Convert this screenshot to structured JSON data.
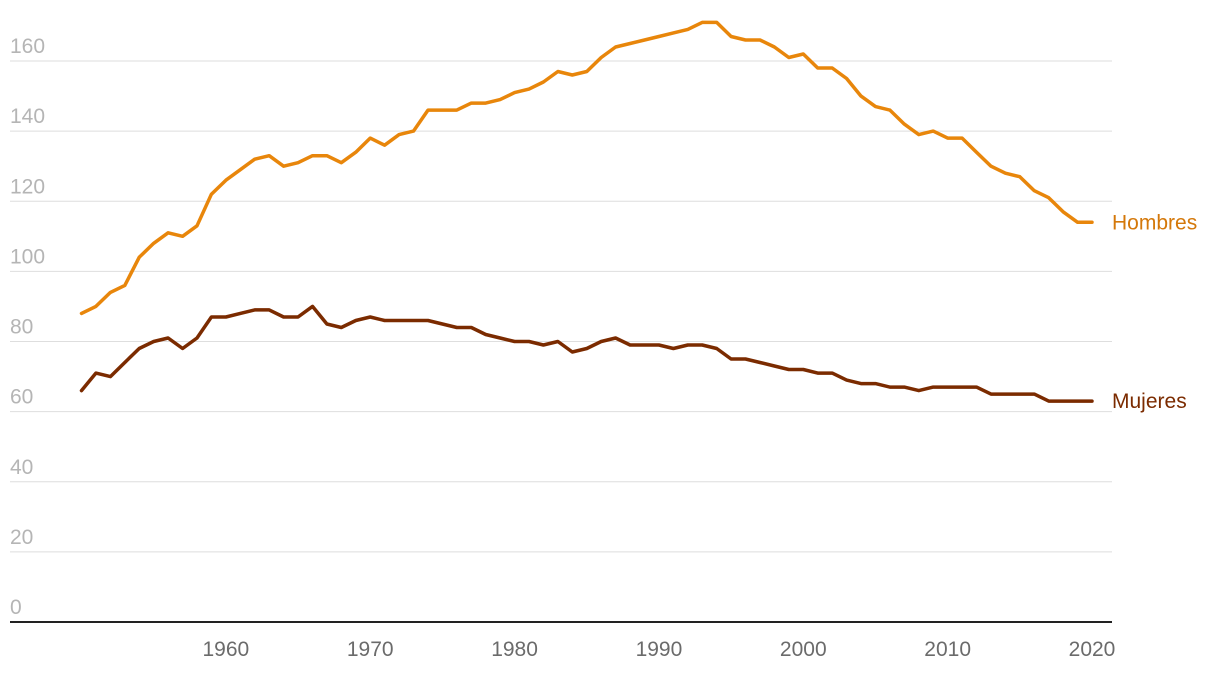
{
  "chart_data": {
    "type": "line",
    "title": "",
    "xlabel": "",
    "ylabel": "",
    "xlim": [
      1950,
      2020
    ],
    "ylim": [
      0,
      160
    ],
    "y_ticks": [
      0,
      20,
      40,
      60,
      80,
      100,
      120,
      140,
      160
    ],
    "x_ticks": [
      1960,
      1970,
      1980,
      1990,
      2000,
      2010,
      2020
    ],
    "grid": "horizontal",
    "legend": "inline labels at line ends",
    "x": [
      1950,
      1951,
      1952,
      1953,
      1954,
      1955,
      1956,
      1957,
      1958,
      1959,
      1960,
      1961,
      1962,
      1963,
      1964,
      1965,
      1966,
      1967,
      1968,
      1969,
      1970,
      1971,
      1972,
      1973,
      1974,
      1975,
      1976,
      1977,
      1978,
      1979,
      1980,
      1981,
      1982,
      1983,
      1984,
      1985,
      1986,
      1987,
      1988,
      1989,
      1990,
      1991,
      1992,
      1993,
      1994,
      1995,
      1996,
      1997,
      1998,
      1999,
      2000,
      2001,
      2002,
      2003,
      2004,
      2005,
      2006,
      2007,
      2008,
      2009,
      2010,
      2011,
      2012,
      2013,
      2014,
      2015,
      2016,
      2017,
      2018,
      2019,
      2020
    ],
    "series": [
      {
        "name": "Hombres",
        "color": "#e8860b",
        "label_color": "#d4780a",
        "values": [
          88,
          90,
          94,
          96,
          104,
          108,
          111,
          110,
          113,
          122,
          126,
          129,
          132,
          133,
          130,
          131,
          133,
          133,
          131,
          134,
          138,
          136,
          139,
          140,
          146,
          146,
          146,
          148,
          148,
          149,
          151,
          152,
          154,
          157,
          156,
          157,
          161,
          164,
          165,
          166,
          167,
          168,
          169,
          171,
          171,
          167,
          166,
          166,
          164,
          161,
          162,
          158,
          158,
          155,
          150,
          147,
          146,
          142,
          139,
          140,
          138,
          138,
          134,
          130,
          128,
          127,
          123,
          121,
          117,
          114,
          114
        ],
        "end_value": 114
      },
      {
        "name": "Mujeres",
        "color": "#7b2b00",
        "label_color": "#7b2b00",
        "values": [
          66,
          71,
          70,
          74,
          78,
          80,
          81,
          78,
          81,
          87,
          87,
          88,
          89,
          89,
          87,
          87,
          90,
          85,
          84,
          86,
          87,
          86,
          86,
          86,
          86,
          85,
          84,
          84,
          82,
          81,
          80,
          80,
          79,
          80,
          77,
          78,
          80,
          81,
          79,
          79,
          79,
          78,
          79,
          79,
          78,
          75,
          75,
          74,
          73,
          72,
          72,
          71,
          71,
          69,
          68,
          68,
          67,
          67,
          66,
          67,
          67,
          67,
          67,
          65,
          65,
          65,
          65,
          63,
          63,
          63,
          63
        ],
        "end_value": 63
      }
    ]
  }
}
